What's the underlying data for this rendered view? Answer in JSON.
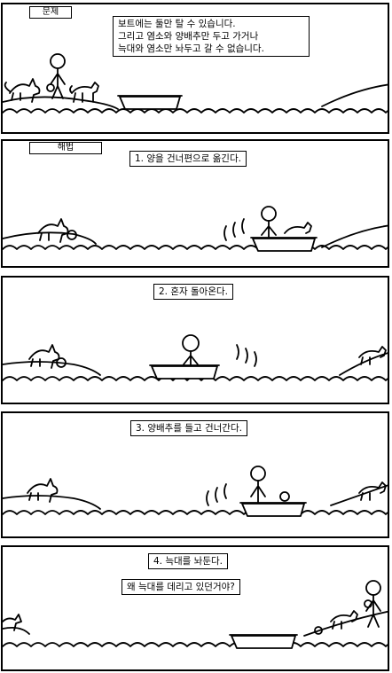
{
  "panels": [
    {
      "tag": "문제",
      "caption": "보트에는 둘만 탈 수 있습니다.\n그리고 염소와 양배추만 두고 가거나\n늑대와 염소만 놔두고 갈 수 없습니다."
    },
    {
      "tag": "해법",
      "caption": "1. 양을 건너편으로 옮긴다."
    },
    {
      "caption": "2. 혼자 돌아온다."
    },
    {
      "caption": "3. 양배추를 들고 건너간다."
    },
    {
      "caption": "4. 늑대를 놔둔다.",
      "speech": "왜 늑대를 데리고 있던거야?"
    }
  ]
}
